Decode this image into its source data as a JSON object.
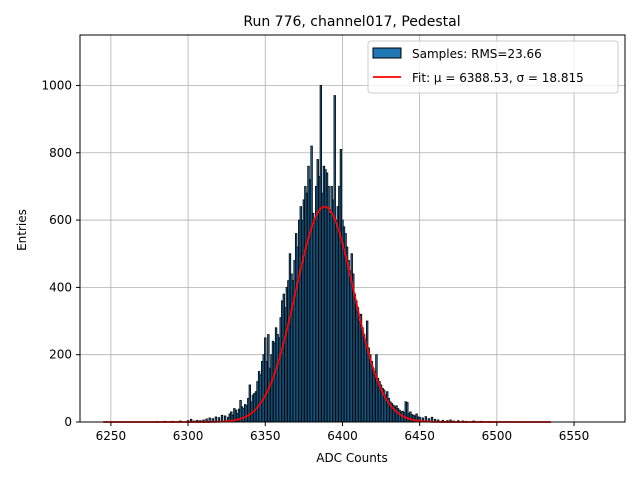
{
  "chart_data": {
    "type": "bar",
    "title": "Run 776, channel017, Pedestal",
    "xlabel": "ADC Counts",
    "ylabel": "Entries",
    "xlim": [
      6230,
      6583
    ],
    "ylim": [
      0,
      1150
    ],
    "xticks": [
      6250,
      6300,
      6350,
      6400,
      6450,
      6500,
      6550
    ],
    "yticks": [
      0,
      200,
      400,
      600,
      800,
      1000
    ],
    "grid": true,
    "legend_position": "top-right",
    "series": [
      {
        "name": "Samples: RMS=23.66",
        "kind": "histogram",
        "color": "#1f77b4",
        "edgecolor": "#000000",
        "bin_width": 1,
        "bins": [
          [
            6280,
            1
          ],
          [
            6285,
            2
          ],
          [
            6290,
            2
          ],
          [
            6295,
            3
          ],
          [
            6300,
            4
          ],
          [
            6302,
            8
          ],
          [
            6304,
            3
          ],
          [
            6306,
            5
          ],
          [
            6308,
            4
          ],
          [
            6310,
            6
          ],
          [
            6312,
            9
          ],
          [
            6314,
            12
          ],
          [
            6316,
            10
          ],
          [
            6318,
            15
          ],
          [
            6320,
            13
          ],
          [
            6322,
            20
          ],
          [
            6324,
            18
          ],
          [
            6326,
            14
          ],
          [
            6327,
            24
          ],
          [
            6328,
            30
          ],
          [
            6329,
            20
          ],
          [
            6330,
            40
          ],
          [
            6331,
            35
          ],
          [
            6332,
            25
          ],
          [
            6333,
            38
          ],
          [
            6334,
            64
          ],
          [
            6335,
            45
          ],
          [
            6336,
            40
          ],
          [
            6337,
            52
          ],
          [
            6338,
            48
          ],
          [
            6339,
            70
          ],
          [
            6340,
            110
          ],
          [
            6341,
            60
          ],
          [
            6342,
            80
          ],
          [
            6343,
            85
          ],
          [
            6344,
            90
          ],
          [
            6345,
            120
          ],
          [
            6346,
            150
          ],
          [
            6347,
            140
          ],
          [
            6348,
            180
          ],
          [
            6349,
            200
          ],
          [
            6350,
            250
          ],
          [
            6351,
            180
          ],
          [
            6352,
            260
          ],
          [
            6353,
            160
          ],
          [
            6354,
            200
          ],
          [
            6355,
            240
          ],
          [
            6356,
            235
          ],
          [
            6357,
            280
          ],
          [
            6358,
            260
          ],
          [
            6359,
            250
          ],
          [
            6360,
            310
          ],
          [
            6361,
            360
          ],
          [
            6362,
            380
          ],
          [
            6363,
            340
          ],
          [
            6364,
            400
          ],
          [
            6365,
            420
          ],
          [
            6366,
            500
          ],
          [
            6367,
            440
          ],
          [
            6368,
            420
          ],
          [
            6369,
            480
          ],
          [
            6370,
            560
          ],
          [
            6371,
            520
          ],
          [
            6372,
            600
          ],
          [
            6373,
            640
          ],
          [
            6374,
            600
          ],
          [
            6375,
            660
          ],
          [
            6376,
            700
          ],
          [
            6377,
            680
          ],
          [
            6378,
            760
          ],
          [
            6379,
            720
          ],
          [
            6380,
            820
          ],
          [
            6381,
            620
          ],
          [
            6382,
            600
          ],
          [
            6383,
            700
          ],
          [
            6384,
            780
          ],
          [
            6385,
            730
          ],
          [
            6386,
            1000
          ],
          [
            6387,
            680
          ],
          [
            6388,
            760
          ],
          [
            6389,
            750
          ],
          [
            6390,
            740
          ],
          [
            6391,
            700
          ],
          [
            6392,
            620
          ],
          [
            6393,
            700
          ],
          [
            6394,
            660
          ],
          [
            6395,
            970
          ],
          [
            6396,
            600
          ],
          [
            6397,
            640
          ],
          [
            6398,
            700
          ],
          [
            6399,
            810
          ],
          [
            6400,
            600
          ],
          [
            6401,
            580
          ],
          [
            6402,
            560
          ],
          [
            6403,
            520
          ],
          [
            6404,
            480
          ],
          [
            6405,
            450
          ],
          [
            6406,
            500
          ],
          [
            6407,
            440
          ],
          [
            6408,
            380
          ],
          [
            6409,
            360
          ],
          [
            6410,
            340
          ],
          [
            6411,
            300
          ],
          [
            6412,
            320
          ],
          [
            6413,
            280
          ],
          [
            6414,
            260
          ],
          [
            6415,
            240
          ],
          [
            6416,
            300
          ],
          [
            6417,
            220
          ],
          [
            6418,
            200
          ],
          [
            6419,
            180
          ],
          [
            6420,
            160
          ],
          [
            6421,
            150
          ],
          [
            6422,
            200
          ],
          [
            6423,
            130
          ],
          [
            6424,
            120
          ],
          [
            6425,
            110
          ],
          [
            6426,
            100
          ],
          [
            6427,
            95
          ],
          [
            6428,
            80
          ],
          [
            6429,
            90
          ],
          [
            6430,
            70
          ],
          [
            6431,
            60
          ],
          [
            6432,
            55
          ],
          [
            6433,
            50
          ],
          [
            6434,
            45
          ],
          [
            6435,
            48
          ],
          [
            6436,
            40
          ],
          [
            6437,
            35
          ],
          [
            6438,
            30
          ],
          [
            6439,
            32
          ],
          [
            6440,
            28
          ],
          [
            6441,
            60
          ],
          [
            6442,
            58
          ],
          [
            6443,
            25
          ],
          [
            6444,
            30
          ],
          [
            6445,
            22
          ],
          [
            6446,
            20
          ],
          [
            6447,
            18
          ],
          [
            6448,
            24
          ],
          [
            6449,
            15
          ],
          [
            6450,
            14
          ],
          [
            6452,
            12
          ],
          [
            6454,
            16
          ],
          [
            6456,
            10
          ],
          [
            6458,
            14
          ],
          [
            6460,
            8
          ],
          [
            6462,
            6
          ],
          [
            6465,
            5
          ],
          [
            6468,
            4
          ],
          [
            6470,
            6
          ],
          [
            6472,
            3
          ],
          [
            6475,
            4
          ],
          [
            6478,
            3
          ],
          [
            6480,
            2
          ],
          [
            6485,
            3
          ],
          [
            6490,
            2
          ],
          [
            6495,
            1
          ]
        ]
      },
      {
        "name": "Fit: μ = 6388.53, σ = 18.815",
        "kind": "gaussian-fit",
        "color": "#ff0000",
        "mu": 6388.53,
        "sigma": 18.815,
        "amplitude": 640,
        "x_range": [
          6245,
          6535
        ]
      }
    ]
  },
  "legend": {
    "entries": [
      {
        "label": "Samples: RMS=23.66",
        "swatch": "patch",
        "color": "#1f77b4"
      },
      {
        "label": "Fit: μ = 6388.53, σ = 18.815",
        "swatch": "line",
        "color": "#ff0000"
      }
    ]
  }
}
